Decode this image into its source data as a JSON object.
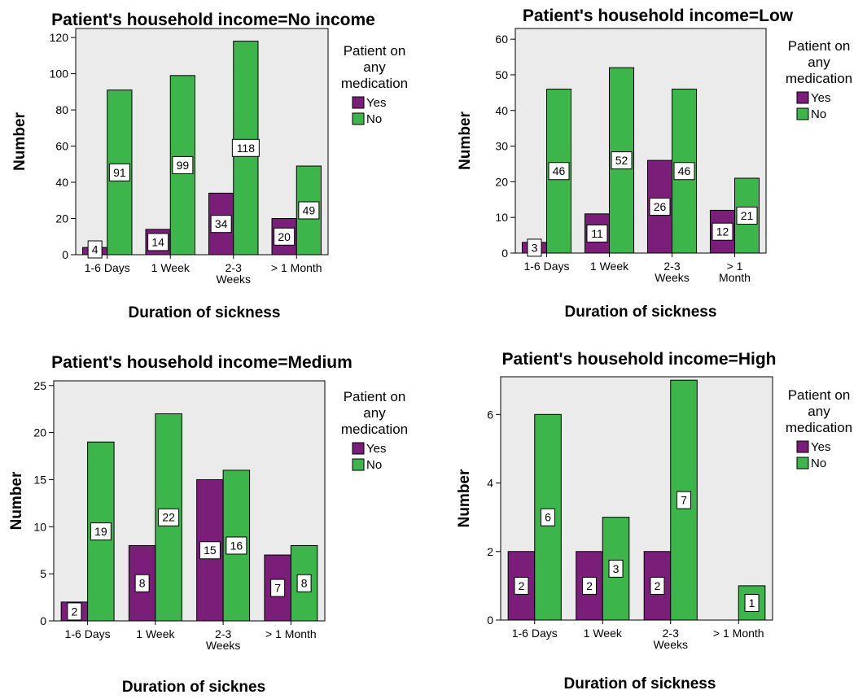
{
  "colors": {
    "yes": "#7b1e7a",
    "no": "#3cb64a",
    "plot_bg": "#ebebeb",
    "label_bg": "#ffffff"
  },
  "chart_data": [
    {
      "type": "bar",
      "title": "Patient's household income=No income",
      "xlabel": "Duration of sickness",
      "ylabel": "Number",
      "categories": [
        "1-6 Days",
        "1 Week",
        "2-3 Weeks",
        "> 1 Month"
      ],
      "category_lines": [
        [
          "1-6 Days"
        ],
        [
          "1 Week"
        ],
        [
          "2-3",
          "Weeks"
        ],
        [
          "> 1 Month"
        ]
      ],
      "yticks": [
        0,
        20,
        40,
        60,
        80,
        100,
        120
      ],
      "ylim": [
        0,
        125
      ],
      "legend": {
        "title_lines": [
          "Patient on",
          "any",
          "medication"
        ],
        "placement": "right"
      },
      "series": [
        {
          "name": "Yes",
          "values": [
            4,
            14,
            34,
            20
          ]
        },
        {
          "name": "No",
          "values": [
            91,
            99,
            118,
            49
          ]
        }
      ]
    },
    {
      "type": "bar",
      "title": "Patient's household income=Low",
      "xlabel": "Duration of sickness",
      "ylabel": "Number",
      "categories": [
        "1-6 Days",
        "1 Week",
        "2-3 Weeks",
        "> 1 Month"
      ],
      "category_lines": [
        [
          "1-6 Days"
        ],
        [
          "1 Week"
        ],
        [
          "2-3",
          "Weeks"
        ],
        [
          "> 1",
          "Month"
        ]
      ],
      "yticks": [
        0,
        10,
        20,
        30,
        40,
        50,
        60
      ],
      "ylim": [
        0,
        63
      ],
      "legend": {
        "title_lines": [
          "Patient on",
          "any",
          "medication"
        ],
        "placement": "right"
      },
      "series": [
        {
          "name": "Yes",
          "values": [
            3,
            11,
            26,
            12
          ]
        },
        {
          "name": "No",
          "values": [
            46,
            52,
            46,
            21
          ]
        }
      ]
    },
    {
      "type": "bar",
      "title": "Patient's household income=Medium",
      "xlabel": "Duration of sicknes",
      "ylabel": "Number",
      "categories": [
        "1-6 Days",
        "1 Week",
        "2-3 Weeks",
        "> 1 Month"
      ],
      "category_lines": [
        [
          "1-6 Days"
        ],
        [
          "1 Week"
        ],
        [
          "2-3",
          "Weeks"
        ],
        [
          "> 1 Month"
        ]
      ],
      "yticks": [
        0,
        5,
        10,
        15,
        20,
        25
      ],
      "ylim": [
        0,
        25.5
      ],
      "legend": {
        "title_lines": [
          "Patient on",
          "any",
          "medication"
        ],
        "placement": "right"
      },
      "series": [
        {
          "name": "Yes",
          "values": [
            2,
            8,
            15,
            7
          ]
        },
        {
          "name": "No",
          "values": [
            19,
            22,
            16,
            8
          ]
        }
      ]
    },
    {
      "type": "bar",
      "title": "Patient's household income=High",
      "xlabel": "Duration of sickness",
      "ylabel": "Number",
      "categories": [
        "1-6 Days",
        "1 Week",
        "2-3 Weeks",
        "> 1 Month"
      ],
      "category_lines": [
        [
          "1-6 Days"
        ],
        [
          "1 Week"
        ],
        [
          "2-3",
          "Weeks"
        ],
        [
          "> 1 Month"
        ]
      ],
      "yticks": [
        0,
        2,
        4,
        6
      ],
      "ylim": [
        0,
        7.1
      ],
      "legend": {
        "title_lines": [
          "Patient on",
          "any",
          "medication"
        ],
        "placement": "right"
      },
      "series": [
        {
          "name": "Yes",
          "values": [
            2,
            2,
            2,
            null
          ]
        },
        {
          "name": "No",
          "values": [
            6,
            3,
            7,
            1
          ]
        }
      ]
    }
  ]
}
